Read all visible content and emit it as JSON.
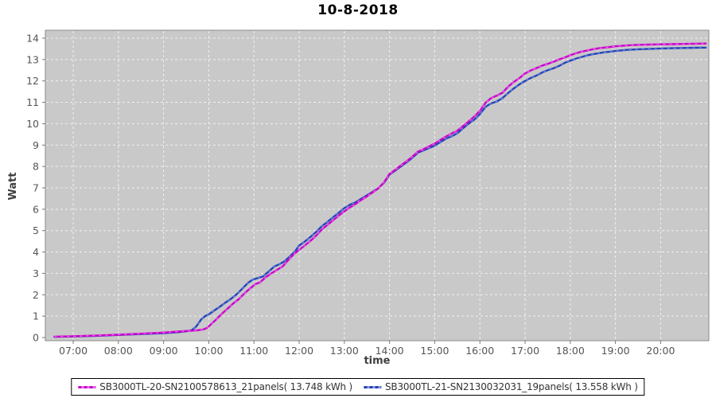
{
  "title": "10-8-2018",
  "chart_data": {
    "type": "line",
    "title": "10-8-2018",
    "xlabel": "time",
    "ylabel": "Watt",
    "x_unit": "minutes_of_day",
    "x_range": [
      383,
      1264
    ],
    "y_range": [
      0,
      14.4
    ],
    "grid": "white dashed gridlines on grey plot background, hourly on x, every 1 unit on y",
    "legend_position": "bottom-center",
    "plot_bg": "#c9c9c9",
    "grid_color": "#f0f0f0",
    "frame_color": "#8a8a8a",
    "tick_text_color": "#555555",
    "x_ticks": [
      {
        "m": 420,
        "label": "07:00"
      },
      {
        "m": 480,
        "label": "08:00"
      },
      {
        "m": 540,
        "label": "09:00"
      },
      {
        "m": 600,
        "label": "10:00"
      },
      {
        "m": 660,
        "label": "11:00"
      },
      {
        "m": 720,
        "label": "12:00"
      },
      {
        "m": 780,
        "label": "13:00"
      },
      {
        "m": 840,
        "label": "14:00"
      },
      {
        "m": 900,
        "label": "15:00"
      },
      {
        "m": 960,
        "label": "16:00"
      },
      {
        "m": 1020,
        "label": "17:00"
      },
      {
        "m": 1080,
        "label": "18:00"
      },
      {
        "m": 1140,
        "label": "19:00"
      },
      {
        "m": 1200,
        "label": "20:00"
      }
    ],
    "y_ticks": [
      0,
      1,
      2,
      3,
      4,
      5,
      6,
      7,
      8,
      9,
      10,
      11,
      12,
      13,
      14
    ],
    "series": [
      {
        "name": "SB3000TL-20-SN2100578613_21panels( 13.748 kWh )",
        "color": "#cc00cc",
        "dash_color": "#ee7aee",
        "total_kwh": 13.748,
        "points": [
          [
            395,
            0.04
          ],
          [
            420,
            0.06
          ],
          [
            450,
            0.09
          ],
          [
            480,
            0.13
          ],
          [
            510,
            0.18
          ],
          [
            540,
            0.23
          ],
          [
            560,
            0.28
          ],
          [
            573,
            0.31
          ],
          [
            585,
            0.34
          ],
          [
            593,
            0.38
          ],
          [
            598,
            0.45
          ],
          [
            603,
            0.62
          ],
          [
            610,
            0.85
          ],
          [
            617,
            1.1
          ],
          [
            625,
            1.35
          ],
          [
            632,
            1.58
          ],
          [
            640,
            1.8
          ],
          [
            647,
            2.05
          ],
          [
            655,
            2.3
          ],
          [
            662,
            2.5
          ],
          [
            668,
            2.58
          ],
          [
            675,
            2.8
          ],
          [
            683,
            3.0
          ],
          [
            690,
            3.15
          ],
          [
            698,
            3.32
          ],
          [
            705,
            3.6
          ],
          [
            713,
            3.9
          ],
          [
            720,
            4.1
          ],
          [
            728,
            4.32
          ],
          [
            735,
            4.52
          ],
          [
            743,
            4.78
          ],
          [
            750,
            5.05
          ],
          [
            758,
            5.28
          ],
          [
            765,
            5.48
          ],
          [
            773,
            5.72
          ],
          [
            780,
            5.9
          ],
          [
            788,
            6.1
          ],
          [
            795,
            6.25
          ],
          [
            803,
            6.45
          ],
          [
            810,
            6.6
          ],
          [
            818,
            6.8
          ],
          [
            825,
            6.97
          ],
          [
            833,
            7.27
          ],
          [
            840,
            7.65
          ],
          [
            848,
            7.85
          ],
          [
            855,
            8.05
          ],
          [
            863,
            8.25
          ],
          [
            870,
            8.45
          ],
          [
            878,
            8.7
          ],
          [
            885,
            8.8
          ],
          [
            893,
            8.95
          ],
          [
            900,
            9.07
          ],
          [
            908,
            9.25
          ],
          [
            915,
            9.4
          ],
          [
            923,
            9.55
          ],
          [
            930,
            9.67
          ],
          [
            938,
            9.9
          ],
          [
            945,
            10.1
          ],
          [
            953,
            10.35
          ],
          [
            960,
            10.6
          ],
          [
            968,
            11.0
          ],
          [
            975,
            11.2
          ],
          [
            983,
            11.32
          ],
          [
            990,
            11.45
          ],
          [
            998,
            11.75
          ],
          [
            1005,
            11.95
          ],
          [
            1013,
            12.15
          ],
          [
            1020,
            12.35
          ],
          [
            1028,
            12.5
          ],
          [
            1035,
            12.6
          ],
          [
            1043,
            12.72
          ],
          [
            1050,
            12.8
          ],
          [
            1058,
            12.9
          ],
          [
            1065,
            13.0
          ],
          [
            1073,
            13.1
          ],
          [
            1080,
            13.2
          ],
          [
            1088,
            13.3
          ],
          [
            1095,
            13.37
          ],
          [
            1103,
            13.43
          ],
          [
            1110,
            13.48
          ],
          [
            1118,
            13.53
          ],
          [
            1125,
            13.56
          ],
          [
            1133,
            13.59
          ],
          [
            1140,
            13.62
          ],
          [
            1155,
            13.66
          ],
          [
            1170,
            13.69
          ],
          [
            1185,
            13.7
          ],
          [
            1200,
            13.71
          ],
          [
            1215,
            13.72
          ],
          [
            1230,
            13.73
          ],
          [
            1245,
            13.74
          ],
          [
            1260,
            13.748
          ]
        ]
      },
      {
        "name": "SB3000TL-21-SN2130032031_19panels( 13.558 kWh )",
        "color": "#2443bb",
        "dash_color": "#7e95dd",
        "total_kwh": 13.558,
        "points": [
          [
            395,
            0.03
          ],
          [
            420,
            0.05
          ],
          [
            450,
            0.08
          ],
          [
            480,
            0.12
          ],
          [
            510,
            0.16
          ],
          [
            540,
            0.2
          ],
          [
            560,
            0.25
          ],
          [
            570,
            0.29
          ],
          [
            577,
            0.33
          ],
          [
            583,
            0.5
          ],
          [
            590,
            0.85
          ],
          [
            596,
            1.02
          ],
          [
            600,
            1.08
          ],
          [
            608,
            1.28
          ],
          [
            615,
            1.45
          ],
          [
            622,
            1.63
          ],
          [
            630,
            1.82
          ],
          [
            638,
            2.05
          ],
          [
            645,
            2.3
          ],
          [
            652,
            2.55
          ],
          [
            658,
            2.7
          ],
          [
            665,
            2.78
          ],
          [
            672,
            2.85
          ],
          [
            680,
            3.1
          ],
          [
            687,
            3.32
          ],
          [
            695,
            3.45
          ],
          [
            700,
            3.55
          ],
          [
            708,
            3.8
          ],
          [
            715,
            4.05
          ],
          [
            720,
            4.3
          ],
          [
            728,
            4.5
          ],
          [
            735,
            4.7
          ],
          [
            743,
            4.95
          ],
          [
            750,
            5.2
          ],
          [
            758,
            5.42
          ],
          [
            765,
            5.62
          ],
          [
            773,
            5.85
          ],
          [
            780,
            6.05
          ],
          [
            788,
            6.22
          ],
          [
            795,
            6.32
          ],
          [
            803,
            6.5
          ],
          [
            810,
            6.65
          ],
          [
            818,
            6.82
          ],
          [
            825,
            6.98
          ],
          [
            833,
            7.25
          ],
          [
            840,
            7.62
          ],
          [
            848,
            7.82
          ],
          [
            855,
            8.0
          ],
          [
            863,
            8.2
          ],
          [
            870,
            8.4
          ],
          [
            878,
            8.65
          ],
          [
            885,
            8.75
          ],
          [
            893,
            8.87
          ],
          [
            900,
            8.97
          ],
          [
            908,
            9.15
          ],
          [
            915,
            9.3
          ],
          [
            923,
            9.42
          ],
          [
            930,
            9.55
          ],
          [
            938,
            9.8
          ],
          [
            945,
            10.0
          ],
          [
            953,
            10.2
          ],
          [
            960,
            10.45
          ],
          [
            968,
            10.8
          ],
          [
            975,
            10.95
          ],
          [
            983,
            11.05
          ],
          [
            990,
            11.2
          ],
          [
            998,
            11.45
          ],
          [
            1005,
            11.65
          ],
          [
            1013,
            11.85
          ],
          [
            1020,
            12.0
          ],
          [
            1028,
            12.15
          ],
          [
            1035,
            12.25
          ],
          [
            1043,
            12.4
          ],
          [
            1050,
            12.5
          ],
          [
            1058,
            12.6
          ],
          [
            1065,
            12.7
          ],
          [
            1073,
            12.85
          ],
          [
            1080,
            12.95
          ],
          [
            1088,
            13.05
          ],
          [
            1095,
            13.12
          ],
          [
            1103,
            13.2
          ],
          [
            1110,
            13.25
          ],
          [
            1118,
            13.3
          ],
          [
            1125,
            13.34
          ],
          [
            1133,
            13.37
          ],
          [
            1140,
            13.4
          ],
          [
            1155,
            13.45
          ],
          [
            1170,
            13.48
          ],
          [
            1185,
            13.5
          ],
          [
            1200,
            13.52
          ],
          [
            1215,
            13.53
          ],
          [
            1230,
            13.54
          ],
          [
            1245,
            13.55
          ],
          [
            1260,
            13.558
          ]
        ]
      }
    ]
  }
}
